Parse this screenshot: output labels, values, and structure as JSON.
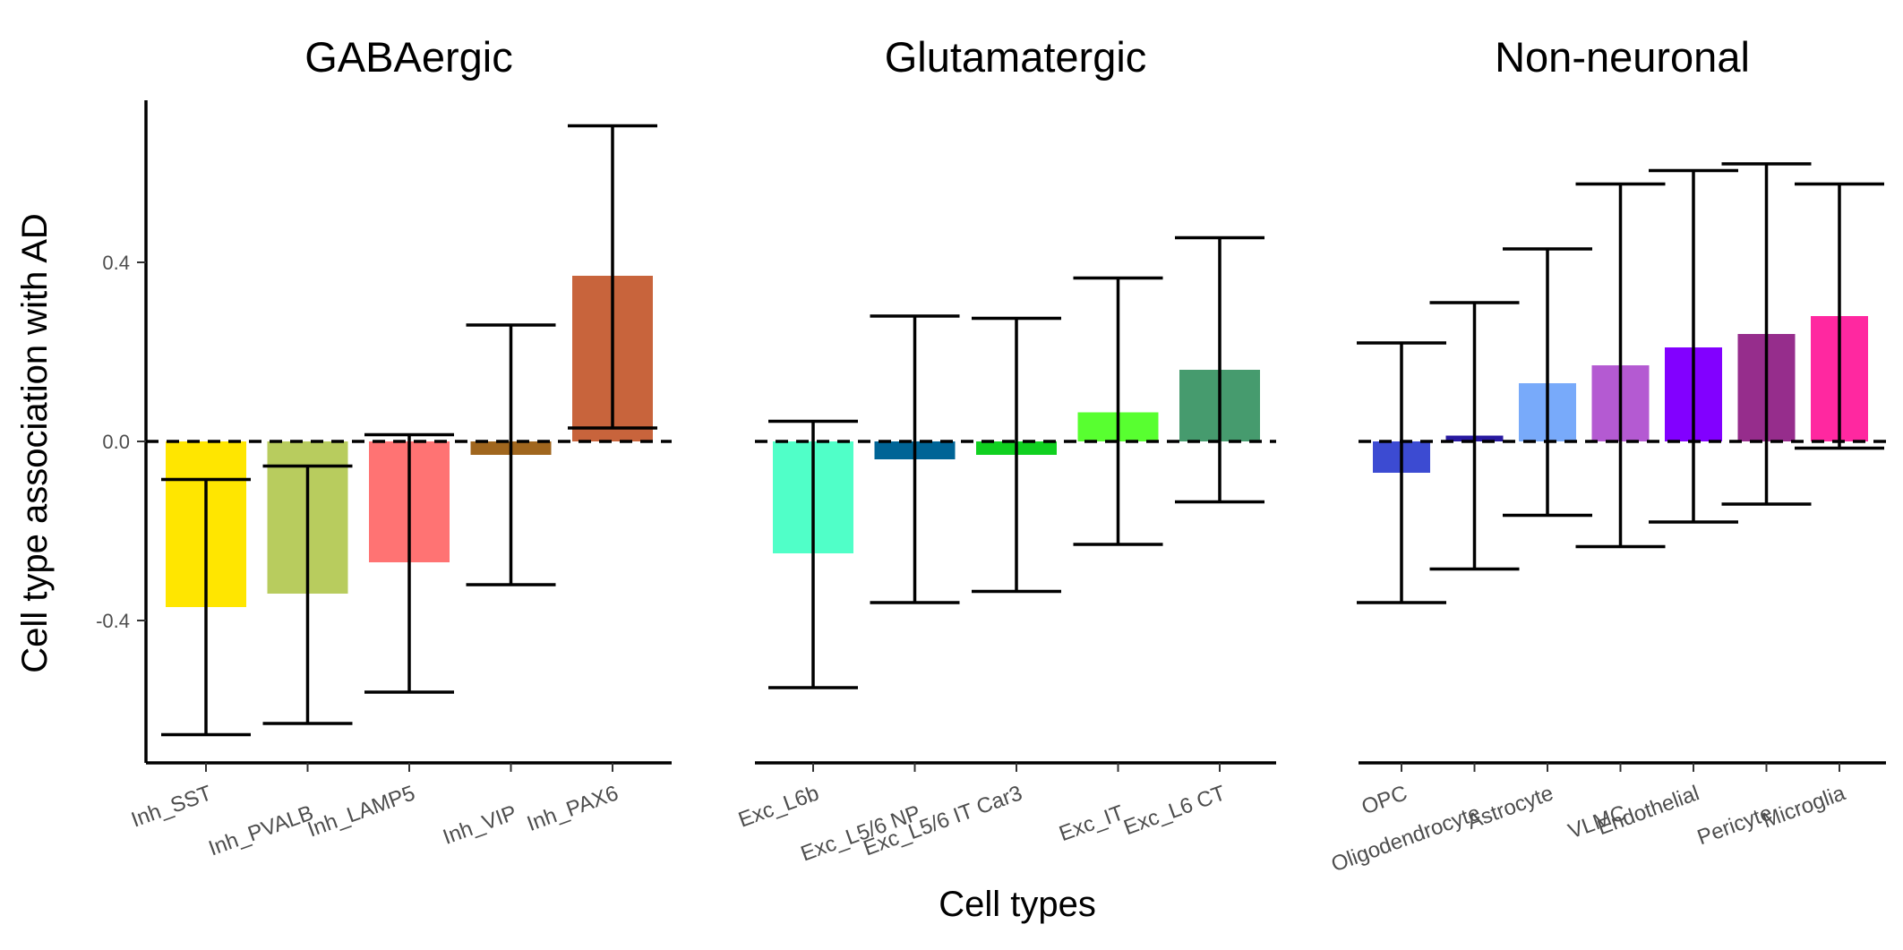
{
  "chart_data": {
    "type": "bar",
    "ylabel": "Cell type association with AD",
    "xlabel": "Cell types",
    "ylim": [
      -0.73,
      0.78
    ],
    "yticks": [
      {
        "value": -0.4,
        "label": "-0.4"
      },
      {
        "value": 0.0,
        "label": "0.0"
      },
      {
        "value": 0.4,
        "label": "0.4"
      }
    ],
    "reference_line": {
      "y": 0,
      "style": "dashed"
    },
    "grid": false,
    "legend": "none",
    "facets": [
      {
        "title": "GABAergic",
        "categories": [
          {
            "name": "Inh_SST",
            "value": -0.37,
            "lower": -0.655,
            "upper": -0.085,
            "color": "#FFE600"
          },
          {
            "name": "Inh_PVALB",
            "value": -0.34,
            "lower": -0.63,
            "upper": -0.055,
            "color": "#B8CC5E"
          },
          {
            "name": "Inh_LAMP5",
            "value": -0.27,
            "lower": -0.56,
            "upper": 0.015,
            "color": "#FF7373"
          },
          {
            "name": "Inh_VIP",
            "value": -0.03,
            "lower": -0.32,
            "upper": 0.26,
            "color": "#A0661E"
          },
          {
            "name": "Inh_PAX6",
            "value": 0.37,
            "lower": 0.03,
            "upper": 0.705,
            "color": "#C8643C"
          }
        ]
      },
      {
        "title": "Glutamatergic",
        "categories": [
          {
            "name": "Exc_L6b",
            "value": -0.25,
            "lower": -0.55,
            "upper": 0.045,
            "color": "#50FFC8"
          },
          {
            "name": "Exc_L5/6 NP",
            "value": -0.04,
            "lower": -0.36,
            "upper": 0.28,
            "color": "#006496"
          },
          {
            "name": "Exc_L5/6 IT Car3",
            "value": -0.03,
            "lower": -0.335,
            "upper": 0.275,
            "color": "#10D020"
          },
          {
            "name": "Exc_IT",
            "value": 0.065,
            "lower": -0.23,
            "upper": 0.365,
            "color": "#58FF30"
          },
          {
            "name": "Exc_L6 CT",
            "value": 0.16,
            "lower": -0.135,
            "upper": 0.455,
            "color": "#469B6E"
          }
        ]
      },
      {
        "title": "Non-neuronal",
        "categories": [
          {
            "name": "OPC",
            "value": -0.07,
            "lower": -0.36,
            "upper": 0.22,
            "color": "#3C4BD2"
          },
          {
            "name": "Oligodendrocyte",
            "value": 0.013,
            "lower": -0.285,
            "upper": 0.31,
            "color": "#2819A0"
          },
          {
            "name": "Astrocyte",
            "value": 0.13,
            "lower": -0.165,
            "upper": 0.43,
            "color": "#78AAFA"
          },
          {
            "name": "VLMC",
            "value": 0.17,
            "lower": -0.235,
            "upper": 0.575,
            "color": "#B45AD2"
          },
          {
            "name": "Endothelial",
            "value": 0.21,
            "lower": -0.18,
            "upper": 0.605,
            "color": "#8200FF"
          },
          {
            "name": "Pericyte",
            "value": 0.24,
            "lower": -0.14,
            "upper": 0.62,
            "color": "#962D8C"
          },
          {
            "name": "Microglia",
            "value": 0.28,
            "lower": -0.015,
            "upper": 0.575,
            "color": "#FF28A0"
          }
        ]
      }
    ]
  }
}
